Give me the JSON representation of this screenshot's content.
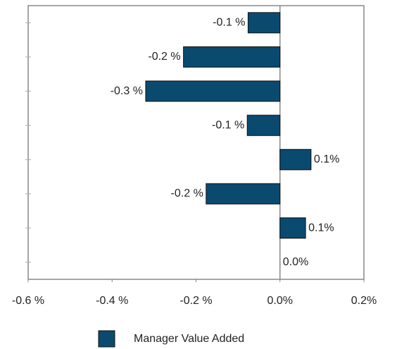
{
  "chart_data": {
    "type": "bar",
    "orientation": "horizontal",
    "categories": [
      null,
      null,
      null,
      null,
      null,
      null,
      null,
      null
    ],
    "series": [
      {
        "name": "Manager Value Added",
        "color": "#0b4a6f",
        "values": [
          -0.076,
          -0.23,
          -0.32,
          -0.078,
          0.074,
          -0.176,
          0.061,
          0
        ],
        "value_labels": [
          "-0.1 %",
          "-0.2 %",
          "-0.3 %",
          "-0.1 %",
          "0.1%",
          "-0.2 %",
          "0.1%",
          "0.0%"
        ]
      }
    ],
    "xlim": [
      -0.6,
      0.2
    ],
    "xticks": [
      {
        "value": -0.6,
        "label": "-0.6 %"
      },
      {
        "value": -0.4,
        "label": "-0.4 %"
      },
      {
        "value": -0.2,
        "label": "-0.2 %"
      },
      {
        "value": 0,
        "label": "0.0%"
      },
      {
        "value": 0.2,
        "label": "0.2%"
      }
    ],
    "legend": "bottom"
  }
}
